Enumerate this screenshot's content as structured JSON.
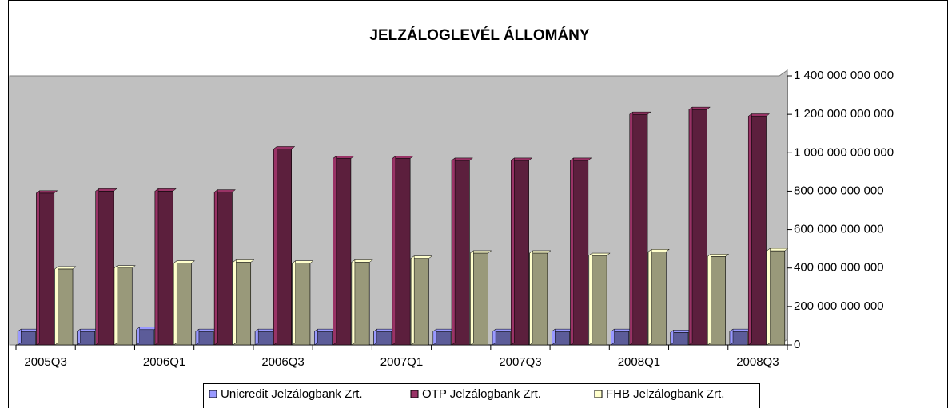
{
  "chart_data": {
    "type": "bar",
    "title": "JELZÁLOGLEVÉL ÁLLOMÁNY",
    "categories": [
      "2005Q3",
      null,
      "2006Q1",
      null,
      "2006Q3",
      null,
      "2007Q1",
      null,
      "2007Q3",
      null,
      "2008Q1",
      null,
      "2008Q3"
    ],
    "series": [
      {
        "name": "Unicredit Jelzálogbank Zrt.",
        "color": "#9999ff",
        "values": [
          70000000000,
          70000000000,
          80000000000,
          70000000000,
          70000000000,
          70000000000,
          70000000000,
          70000000000,
          70000000000,
          70000000000,
          70000000000,
          65000000000,
          70000000000
        ]
      },
      {
        "name": "OTP Jelzálogbank Zrt.",
        "color": "#993366",
        "values": [
          790000000000,
          800000000000,
          800000000000,
          795000000000,
          1020000000000,
          970000000000,
          970000000000,
          960000000000,
          960000000000,
          960000000000,
          1200000000000,
          1225000000000,
          1190000000000
        ]
      },
      {
        "name": "FHB Jelzálogbank Zrt.",
        "color": "#ffffcc",
        "values": [
          395000000000,
          400000000000,
          425000000000,
          430000000000,
          425000000000,
          430000000000,
          450000000000,
          478000000000,
          478000000000,
          465000000000,
          485000000000,
          460000000000,
          490000000000
        ]
      }
    ],
    "ylim": [
      0,
      1400000000000
    ],
    "yticks": [
      0,
      {
        "value": 200000000000,
        "label": "200 000 000 000"
      },
      {
        "value": 400000000000,
        "label": "400 000 000 000"
      },
      {
        "value": 600000000000,
        "label": "600 000 000 000"
      },
      {
        "value": 800000000000,
        "label": "800 000 000 000"
      },
      {
        "value": 1000000000000,
        "label": "1 000 000 000 000"
      },
      {
        "value": 1200000000000,
        "label": "1 200 000 000 000"
      },
      {
        "value": 1400000000000,
        "label": "1 400 000 000 000"
      }
    ],
    "grid": false
  }
}
